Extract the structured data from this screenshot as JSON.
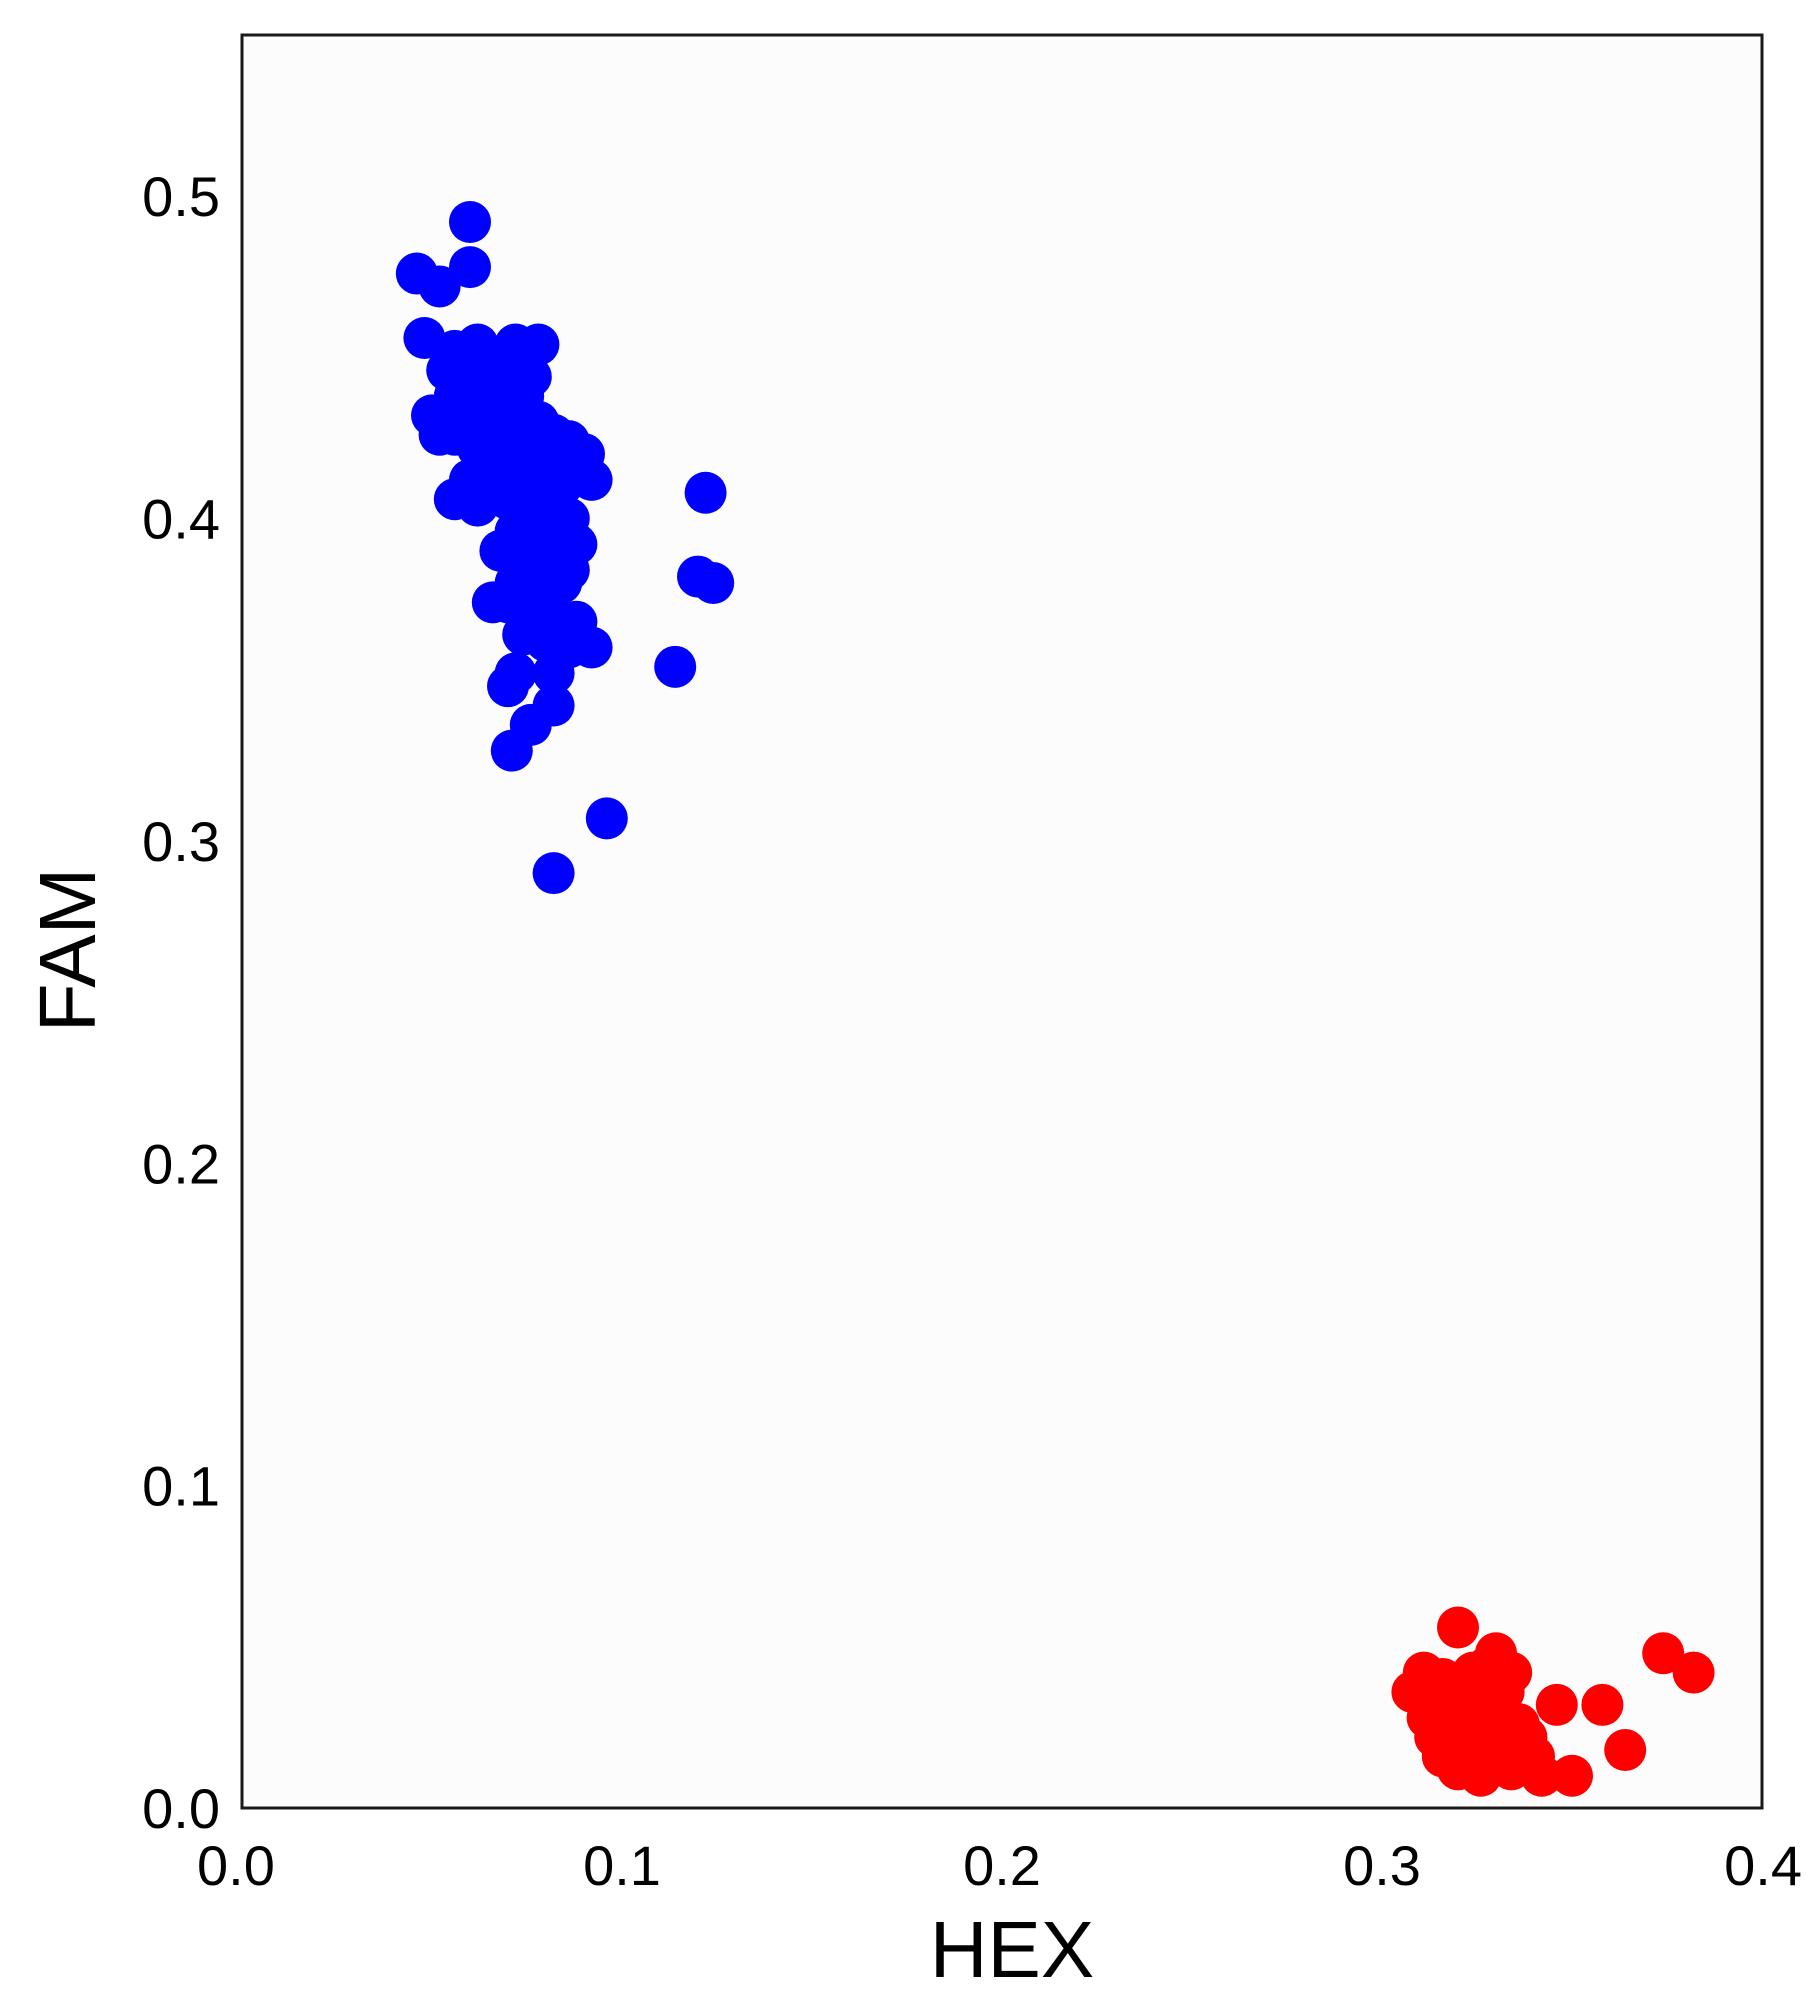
{
  "chart_data": {
    "type": "scatter",
    "xlabel": "HEX",
    "ylabel": "FAM",
    "xlim": [
      0.0,
      0.4
    ],
    "ylim": [
      0.0,
      0.55
    ],
    "x_ticks": [
      "0.0",
      "0.1",
      "0.2",
      "0.3",
      "0.4"
    ],
    "y_ticks": [
      "0.0",
      "0.1",
      "0.2",
      "0.3",
      "0.4",
      "0.5"
    ],
    "grid": false,
    "legend": "none",
    "series": [
      {
        "color": "#0000ff",
        "points": [
          [
            0.06,
            0.492
          ],
          [
            0.046,
            0.476
          ],
          [
            0.06,
            0.478
          ],
          [
            0.052,
            0.472
          ],
          [
            0.048,
            0.456
          ],
          [
            0.056,
            0.452
          ],
          [
            0.062,
            0.454
          ],
          [
            0.072,
            0.454
          ],
          [
            0.078,
            0.454
          ],
          [
            0.054,
            0.446
          ],
          [
            0.06,
            0.444
          ],
          [
            0.068,
            0.448
          ],
          [
            0.076,
            0.444
          ],
          [
            0.056,
            0.438
          ],
          [
            0.064,
            0.44
          ],
          [
            0.07,
            0.436
          ],
          [
            0.074,
            0.438
          ],
          [
            0.05,
            0.432
          ],
          [
            0.052,
            0.426
          ],
          [
            0.058,
            0.432
          ],
          [
            0.066,
            0.43
          ],
          [
            0.072,
            0.428
          ],
          [
            0.078,
            0.43
          ],
          [
            0.082,
            0.426
          ],
          [
            0.056,
            0.426
          ],
          [
            0.062,
            0.422
          ],
          [
            0.068,
            0.42
          ],
          [
            0.074,
            0.422
          ],
          [
            0.08,
            0.42
          ],
          [
            0.086,
            0.424
          ],
          [
            0.09,
            0.42
          ],
          [
            0.06,
            0.412
          ],
          [
            0.066,
            0.414
          ],
          [
            0.072,
            0.412
          ],
          [
            0.078,
            0.414
          ],
          [
            0.084,
            0.41
          ],
          [
            0.088,
            0.416
          ],
          [
            0.092,
            0.412
          ],
          [
            0.056,
            0.406
          ],
          [
            0.062,
            0.404
          ],
          [
            0.07,
            0.406
          ],
          [
            0.076,
            0.402
          ],
          [
            0.082,
            0.404
          ],
          [
            0.086,
            0.4
          ],
          [
            0.072,
            0.396
          ],
          [
            0.078,
            0.394
          ],
          [
            0.084,
            0.396
          ],
          [
            0.088,
            0.392
          ],
          [
            0.068,
            0.39
          ],
          [
            0.074,
            0.388
          ],
          [
            0.08,
            0.386
          ],
          [
            0.086,
            0.384
          ],
          [
            0.072,
            0.38
          ],
          [
            0.078,
            0.378
          ],
          [
            0.084,
            0.38
          ],
          [
            0.07,
            0.374
          ],
          [
            0.076,
            0.372
          ],
          [
            0.082,
            0.37
          ],
          [
            0.088,
            0.368
          ],
          [
            0.066,
            0.374
          ],
          [
            0.074,
            0.364
          ],
          [
            0.08,
            0.362
          ],
          [
            0.086,
            0.36
          ],
          [
            0.092,
            0.36
          ],
          [
            0.072,
            0.352
          ],
          [
            0.082,
            0.352
          ],
          [
            0.07,
            0.348
          ],
          [
            0.082,
            0.342
          ],
          [
            0.076,
            0.336
          ],
          [
            0.071,
            0.328
          ],
          [
            0.122,
            0.408
          ],
          [
            0.12,
            0.382
          ],
          [
            0.124,
            0.38
          ],
          [
            0.114,
            0.354
          ],
          [
            0.096,
            0.307
          ],
          [
            0.082,
            0.29
          ]
        ]
      },
      {
        "color": "#ff0000",
        "points": [
          [
            0.32,
            0.056
          ],
          [
            0.311,
            0.042
          ],
          [
            0.316,
            0.04
          ],
          [
            0.324,
            0.042
          ],
          [
            0.33,
            0.048
          ],
          [
            0.334,
            0.042
          ],
          [
            0.328,
            0.044
          ],
          [
            0.308,
            0.036
          ],
          [
            0.314,
            0.034
          ],
          [
            0.32,
            0.036
          ],
          [
            0.326,
            0.038
          ],
          [
            0.332,
            0.036
          ],
          [
            0.312,
            0.028
          ],
          [
            0.318,
            0.03
          ],
          [
            0.324,
            0.03
          ],
          [
            0.33,
            0.028
          ],
          [
            0.336,
            0.026
          ],
          [
            0.314,
            0.022
          ],
          [
            0.32,
            0.024
          ],
          [
            0.326,
            0.022
          ],
          [
            0.332,
            0.02
          ],
          [
            0.338,
            0.022
          ],
          [
            0.316,
            0.016
          ],
          [
            0.322,
            0.018
          ],
          [
            0.328,
            0.016
          ],
          [
            0.334,
            0.018
          ],
          [
            0.34,
            0.016
          ],
          [
            0.32,
            0.012
          ],
          [
            0.326,
            0.01
          ],
          [
            0.334,
            0.012
          ],
          [
            0.342,
            0.01
          ],
          [
            0.35,
            0.01
          ],
          [
            0.346,
            0.032
          ],
          [
            0.358,
            0.032
          ],
          [
            0.364,
            0.018
          ],
          [
            0.374,
            0.048
          ],
          [
            0.382,
            0.042
          ]
        ]
      }
    ]
  }
}
